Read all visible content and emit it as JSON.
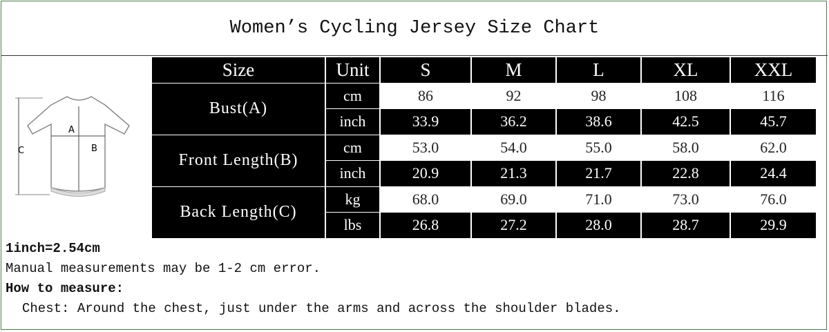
{
  "header": {
    "title": "Women’s Cycling Jersey Size Chart"
  },
  "diagram": {
    "labels": [
      "A",
      "B",
      "C"
    ]
  },
  "table": {
    "columns": [
      "Size",
      "Unit",
      "S",
      "M",
      "L",
      "XL",
      "XXL"
    ],
    "groups": [
      {
        "label": "Bust(A)",
        "rows": [
          {
            "unit": "cm",
            "values": [
              "86",
              "92",
              "98",
              "108",
              "116"
            ]
          },
          {
            "unit": "inch",
            "values": [
              "33.9",
              "36.2",
              "38.6",
              "42.5",
              "45.7"
            ]
          }
        ]
      },
      {
        "label": "Front Length(B)",
        "rows": [
          {
            "unit": "cm",
            "values": [
              "53.0",
              "54.0",
              "55.0",
              "58.0",
              "62.0"
            ]
          },
          {
            "unit": "inch",
            "values": [
              "20.9",
              "21.3",
              "21.7",
              "22.8",
              "24.4"
            ]
          }
        ]
      },
      {
        "label": "Back Length(C)",
        "rows": [
          {
            "unit": "kg",
            "values": [
              "68.0",
              "69.0",
              "71.0",
              "73.0",
              "76.0"
            ]
          },
          {
            "unit": "lbs",
            "values": [
              "26.8",
              "27.2",
              "28.0",
              "28.7",
              "29.9"
            ]
          }
        ]
      }
    ]
  },
  "notes": [
    "1inch=2.54cm",
    "Manual measurements may be 1-2 cm error."
  ],
  "how_to": {
    "heading": "How to measure:",
    "items": [
      "Chest: Around the chest, just under the arms and across the shoulder blades."
    ]
  }
}
